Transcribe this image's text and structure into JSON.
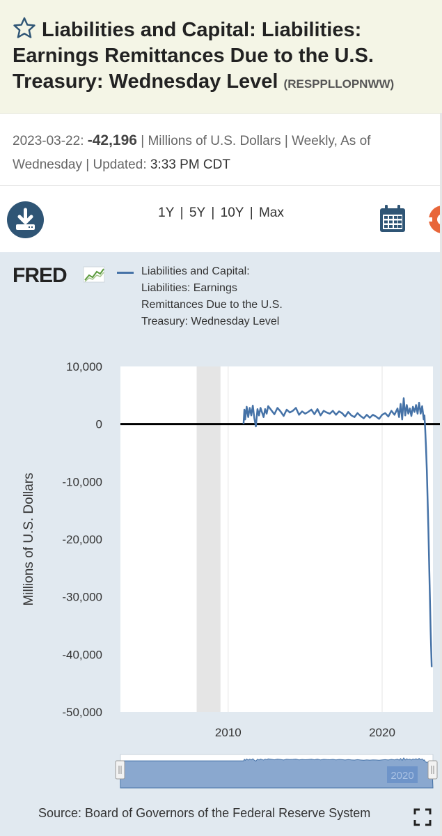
{
  "header": {
    "title": "Liabilities and Capital: Liabilities: Earnings Remittances Due to the U.S. Treasury: Wednesday Level",
    "series_id": "(RESPPLLOPNWW)"
  },
  "meta": {
    "date": "2023-03-22:",
    "value": "-42,196",
    "units_text": "| Millions of U.S. Dollars | Weekly, As of Wednesday | Updated:",
    "updated": "3:33 PM CDT"
  },
  "toolbar": {
    "ranges": [
      "1Y",
      "5Y",
      "10Y",
      "Max"
    ],
    "download_icon": "download-icon",
    "calendar_icon": "calendar-icon",
    "settings_icon": "gear-icon"
  },
  "logo": "FRED",
  "legend": {
    "label": "Liabilities and Capital: Liabilities: Earnings Remittances Due to the U.S. Treasury: Wednesday Level",
    "color": "#4572a7"
  },
  "source": "Source: Board of Governors of the Federal Reserve System",
  "chart_data": {
    "type": "line",
    "ylabel": "Millions of U.S. Dollars",
    "xlabel": "",
    "ylim": [
      -50000,
      10000
    ],
    "yticks": [
      10000,
      0,
      -10000,
      -20000,
      -30000,
      -40000,
      -50000
    ],
    "ytick_labels": [
      "10,000",
      "0",
      "-10,000",
      "-20,000",
      "-30,000",
      "-40,000",
      "-50,000"
    ],
    "xlim": [
      2003.0,
      2023.3
    ],
    "xticks": [
      2010,
      2020
    ],
    "xtick_labels": [
      "2010",
      "2020"
    ],
    "recession_shading": [
      [
        2007.95,
        2009.5
      ]
    ],
    "zero_line": true,
    "series": [
      {
        "color": "#4572a7",
        "x": [
          2011.0,
          2011.05,
          2011.1,
          2011.2,
          2011.3,
          2011.4,
          2011.5,
          2011.6,
          2011.7,
          2011.8,
          2011.9,
          2012.0,
          2012.1,
          2012.2,
          2012.3,
          2012.4,
          2012.5,
          2012.6,
          2012.8,
          2013.0,
          2013.2,
          2013.4,
          2013.6,
          2013.8,
          2014.0,
          2014.2,
          2014.4,
          2014.6,
          2014.8,
          2015.0,
          2015.2,
          2015.4,
          2015.6,
          2015.8,
          2016.0,
          2016.2,
          2016.4,
          2016.6,
          2016.8,
          2017.0,
          2017.2,
          2017.4,
          2017.6,
          2017.8,
          2018.0,
          2018.2,
          2018.4,
          2018.6,
          2018.8,
          2019.0,
          2019.2,
          2019.4,
          2019.6,
          2019.8,
          2020.0,
          2020.2,
          2020.4,
          2020.6,
          2020.8,
          2021.0,
          2021.1,
          2021.2,
          2021.3,
          2021.4,
          2021.5,
          2021.6,
          2021.7,
          2021.8,
          2021.9,
          2022.0,
          2022.1,
          2022.2,
          2022.3,
          2022.4,
          2022.5,
          2022.6,
          2022.65,
          2022.7,
          2022.75,
          2022.8,
          2022.85,
          2022.9,
          2022.95,
          2023.0,
          2023.05,
          2023.1,
          2023.15,
          2023.22
        ],
        "values": [
          0,
          2500,
          800,
          3000,
          1200,
          2800,
          1500,
          3200,
          1000,
          -400,
          2600,
          1500,
          2800,
          2000,
          1200,
          2600,
          1800,
          3100,
          2400,
          1700,
          2800,
          2200,
          1400,
          2500,
          2000,
          2300,
          2800,
          1600,
          2200,
          1800,
          2100,
          2500,
          1700,
          2600,
          1500,
          2300,
          2000,
          1800,
          2300,
          1600,
          2200,
          1900,
          1300,
          2100,
          1500,
          1200,
          1900,
          1400,
          1000,
          1600,
          1100,
          1600,
          1300,
          900,
          1600,
          1900,
          1300,
          2300,
          1600,
          2700,
          1200,
          3500,
          800,
          4500,
          1500,
          3300,
          1800,
          2700,
          1400,
          3000,
          2100,
          3300,
          1800,
          3700,
          1800,
          3100,
          2000,
          800,
          1500,
          -1000,
          -4000,
          -8000,
          -13000,
          -18000,
          -24000,
          -30000,
          -36000,
          -42196
        ]
      }
    ]
  }
}
